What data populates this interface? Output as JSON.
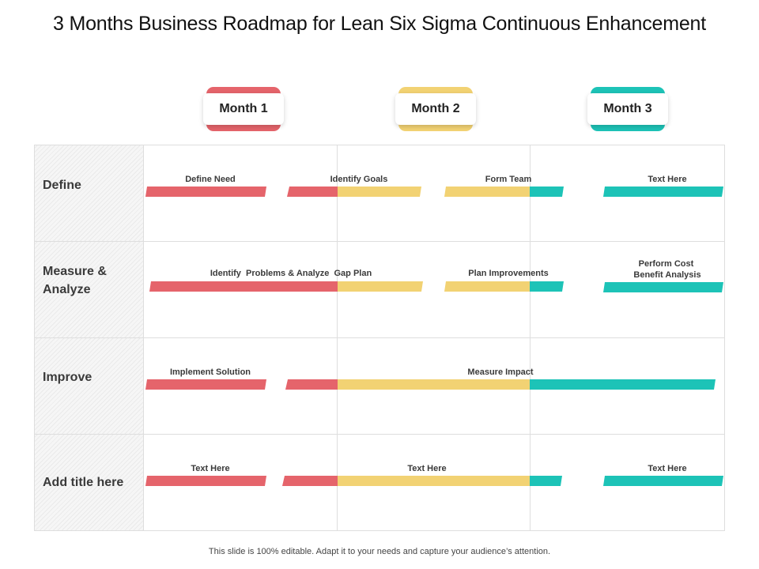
{
  "title": "3 Months Business Roadmap for Lean Six Sigma Continuous Enhancement",
  "months": [
    {
      "label": "Month 1",
      "color": "#e5646b"
    },
    {
      "label": "Month 2",
      "color": "#f2d273"
    },
    {
      "label": "Month 3",
      "color": "#1dc3b7"
    }
  ],
  "rows": [
    {
      "label": "Define"
    },
    {
      "label": "Measure &\nAnalyze"
    },
    {
      "label": "Improve"
    },
    {
      "label": "Add title here"
    }
  ],
  "tasks": [
    "Define Need",
    "Identify Goals",
    "Form Team",
    "Text Here",
    "Identify  Problems & Analyze  Gap Plan",
    "Plan Improvements",
    "Perform Cost\nBenefit Analysis",
    "Implement Solution",
    "Measure Impact",
    "Text Here",
    "Text Here",
    "Text Here"
  ],
  "footer": "This slide is 100% editable. Adapt it to your needs and capture your audience’s attention."
}
